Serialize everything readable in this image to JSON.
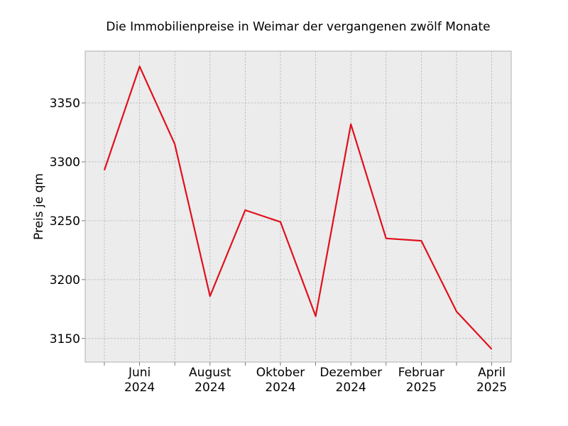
{
  "chart_data": {
    "type": "line",
    "title": "Die Immobilienpreise in Weimar der vergangenen zwölf Monate",
    "xlabel": "",
    "ylabel": "Preis je qm",
    "x": [
      "2024-05",
      "2024-06",
      "2024-07",
      "2024-08",
      "2024-09",
      "2024-10",
      "2024-11",
      "2024-12",
      "2025-01",
      "2025-02",
      "2025-03",
      "2025-04"
    ],
    "x_tick_labels": [
      {
        "month": "Juni",
        "year": "2024"
      },
      {
        "month": "August",
        "year": "2024"
      },
      {
        "month": "Oktober",
        "year": "2024"
      },
      {
        "month": "Dezember",
        "year": "2024"
      },
      {
        "month": "Februar",
        "year": "2025"
      },
      {
        "month": "April",
        "year": "2025"
      }
    ],
    "y_ticks": [
      "3150",
      "3200",
      "3250",
      "3300",
      "3350"
    ],
    "series": [
      {
        "values": [
          3293,
          3381,
          3315,
          3186,
          3259,
          3249,
          3169,
          3332,
          3235,
          3233,
          3173,
          3141
        ],
        "color": "#e0101c"
      }
    ],
    "ylim": [
      3130,
      3394
    ],
    "grid": true,
    "background": "#ececec"
  }
}
